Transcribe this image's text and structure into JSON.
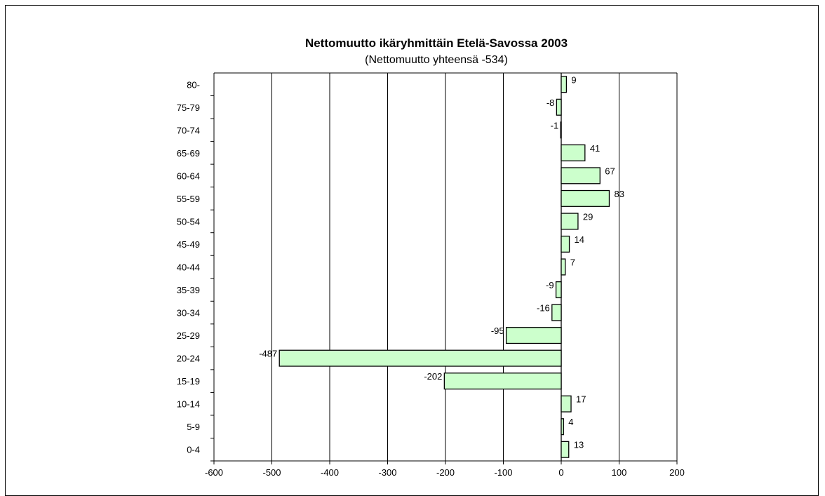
{
  "chart_data": {
    "type": "bar",
    "orientation": "horizontal",
    "title": "Nettomuutto ikäryhmittäin Etelä-Savossa 2003",
    "subtitle": "(Nettomuutto yhteensä -534)",
    "categories": [
      "0-4",
      "5-9",
      "10-14",
      "15-19",
      "20-24",
      "25-29",
      "30-34",
      "35-39",
      "40-44",
      "45-49",
      "50-54",
      "55-59",
      "60-64",
      "65-69",
      "70-74",
      "75-79",
      "80-"
    ],
    "values": [
      13,
      4,
      17,
      -202,
      -487,
      -95,
      -16,
      -9,
      7,
      14,
      29,
      83,
      67,
      41,
      -1,
      -8,
      9
    ],
    "x_ticks": [
      "-600",
      "-500",
      "-400",
      "-300",
      "-200",
      "-100",
      "0",
      "100",
      "200"
    ],
    "xlim": [
      -600,
      200
    ],
    "grid": "vertical",
    "legend": "none",
    "bar_fill": "#ccffcc",
    "bar_stroke": "#000000"
  }
}
